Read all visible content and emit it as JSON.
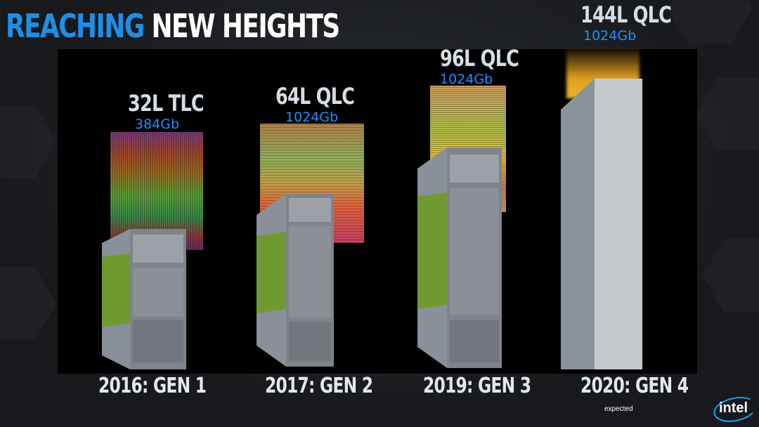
{
  "title": {
    "part1": "REACHING",
    "part2": "NEW HEIGHTS"
  },
  "generations": [
    {
      "layers": "32L TLC",
      "capacity": "384Gb",
      "label": "2016: GEN 1"
    },
    {
      "layers": "64L QLC",
      "capacity": "1024Gb",
      "label": "2017: GEN 2"
    },
    {
      "layers": "96L QLC",
      "capacity": "1024Gb",
      "label": "2019: GEN 3"
    },
    {
      "layers": "144L QLC",
      "capacity": "1024Gb",
      "label": "2020: GEN 4",
      "note": "expected"
    }
  ],
  "logo": {
    "text": "intel"
  },
  "colors": {
    "accent_blue": "#1f8fe6",
    "capacity_blue": "#1e90ff",
    "glow": "#f0a820"
  }
}
